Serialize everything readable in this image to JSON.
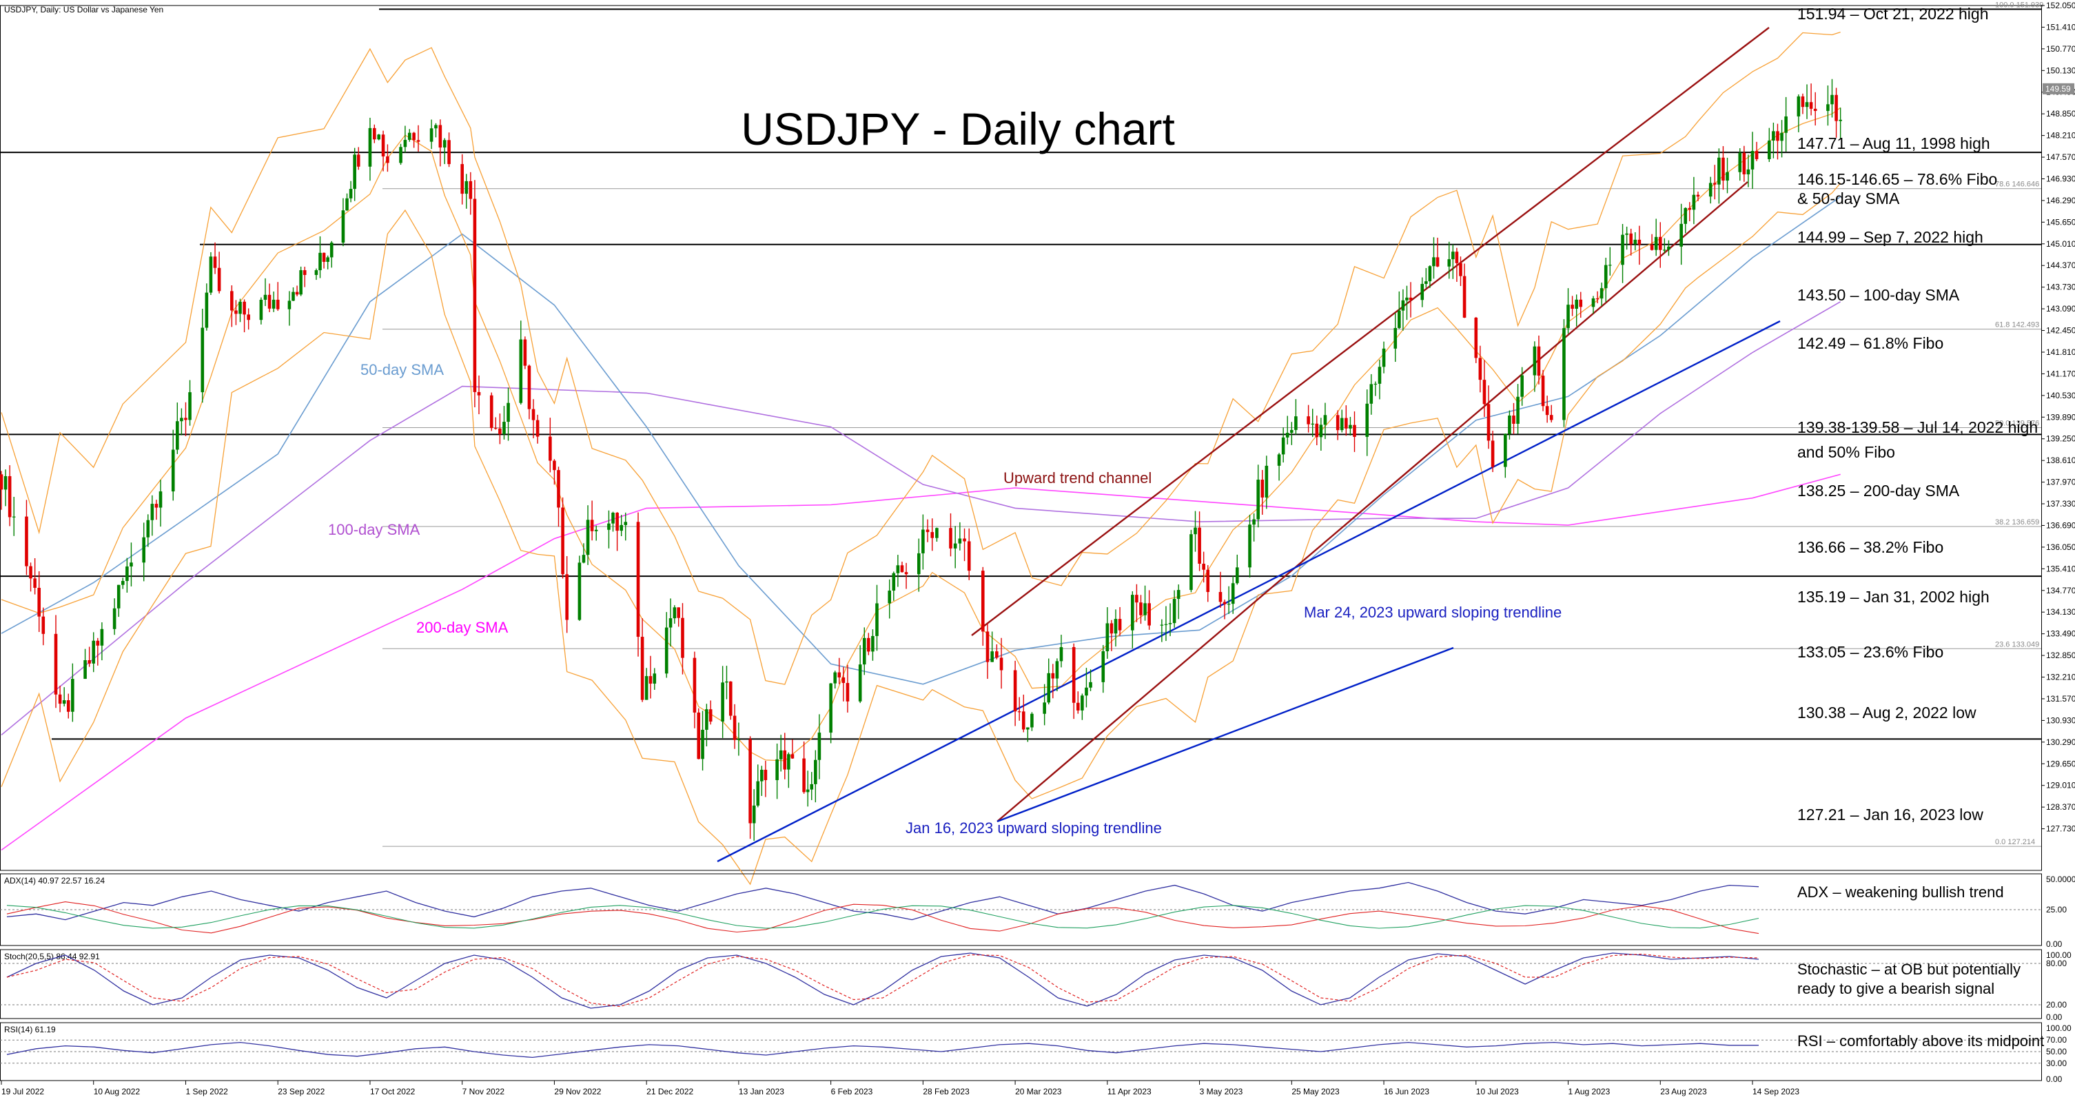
{
  "header": {
    "instrument": "USDJPY, Daily:  US Dollar vs Japanese Yen",
    "title": "USDJPY - Daily chart"
  },
  "colors": {
    "bull": "#008000",
    "bear": "#e00000",
    "bollinger": "#f7a035",
    "sma50": "#6a9cd0",
    "sma100": "#b070e0",
    "sma200": "#ff44ff",
    "channel": "#9a1010",
    "trendline": "#0020c8",
    "level": "#000000",
    "fibo": "#9a9a9a",
    "adx": "#3030a0",
    "plus_di": "#20a060",
    "minus_di": "#e02020",
    "stoch_main": "#3030a0",
    "stoch_signal": "#e02020",
    "rsi": "#3030a0"
  },
  "chart_data": {
    "type": "candlestick",
    "title": "USDJPY - Daily chart",
    "ylim": [
      126.5,
      152.05
    ],
    "x_ticks": [
      "19 Jul 2022",
      "10 Aug 2022",
      "1 Sep 2022",
      "23 Sep 2022",
      "17 Oct 2022",
      "7 Nov 2022",
      "29 Nov 2022",
      "21 Dec 2022",
      "13 Jan 2023",
      "6 Feb 2023",
      "28 Feb 2023",
      "20 Mar 2023",
      "11 Apr 2023",
      "3 May 2023",
      "25 May 2023",
      "16 Jun 2023",
      "10 Jul 2023",
      "1 Aug 2023",
      "23 Aug 2023",
      "14 Sep 2023"
    ],
    "y_ticks": [
      "152.050",
      "151.410",
      "150.770",
      "150.130",
      "149.490",
      "148.850",
      "148.210",
      "147.570",
      "146.930",
      "146.290",
      "145.650",
      "145.010",
      "144.370",
      "143.730",
      "143.090",
      "142.450",
      "141.810",
      "141.170",
      "140.530",
      "139.890",
      "139.250",
      "138.610",
      "137.970",
      "137.330",
      "136.690",
      "136.050",
      "135.410",
      "134.770",
      "134.130",
      "133.490",
      "132.850",
      "132.210",
      "131.570",
      "130.930",
      "130.290",
      "129.650",
      "129.010",
      "128.370",
      "127.730"
    ],
    "current_price_label": "149.59",
    "close_path": [
      [
        "19 Jul 2022",
        138.2
      ],
      [
        "28 Jul 2022",
        134.3
      ],
      [
        "2 Aug 2022",
        131.0
      ],
      [
        "10 Aug 2022",
        132.9
      ],
      [
        "17 Aug 2022",
        135.0
      ],
      [
        "1 Sep 2022",
        140.0
      ],
      [
        "7 Sep 2022",
        144.2
      ],
      [
        "12 Sep 2022",
        142.8
      ],
      [
        "23 Sep 2022",
        143.4
      ],
      [
        "5 Oct 2022",
        144.5
      ],
      [
        "17 Oct 2022",
        148.8
      ],
      [
        "21 Oct 2022",
        147.5
      ],
      [
        "25 Oct 2022",
        148.2
      ],
      [
        "31 Oct 2022",
        148.7
      ],
      [
        "3 Nov 2022",
        147.9
      ],
      [
        "9 Nov 2022",
        146.4
      ],
      [
        "10 Nov 2022",
        141.0
      ],
      [
        "16 Nov 2022",
        139.4
      ],
      [
        "21 Nov 2022",
        141.8
      ],
      [
        "25 Nov 2022",
        139.1
      ],
      [
        "29 Nov 2022",
        138.1
      ],
      [
        "2 Dec 2022",
        134.3
      ],
      [
        "8 Dec 2022",
        136.9
      ],
      [
        "16 Dec 2022",
        136.6
      ],
      [
        "20 Dec 2022",
        131.8
      ],
      [
        "28 Dec 2022",
        134.3
      ],
      [
        "3 Jan 2023",
        130.0
      ],
      [
        "9 Jan 2023",
        132.5
      ],
      [
        "16 Jan 2023",
        128.1
      ],
      [
        "20 Jan 2023",
        129.6
      ],
      [
        "25 Jan 2023",
        129.8
      ],
      [
        "1 Feb 2023",
        128.8
      ],
      [
        "6 Feb 2023",
        132.4
      ],
      [
        "10 Feb 2023",
        131.4
      ],
      [
        "17 Feb 2023",
        134.2
      ],
      [
        "28 Feb 2023",
        136.2
      ],
      [
        "2 Mar 2023",
        136.7
      ],
      [
        "9 Mar 2023",
        136.0
      ],
      [
        "13 Mar 2023",
        133.4
      ],
      [
        "20 Mar 2023",
        131.2
      ],
      [
        "24 Mar 2023",
        130.7
      ],
      [
        "31 Mar 2023",
        132.8
      ],
      [
        "5 Apr 2023",
        131.3
      ],
      [
        "11 Apr 2023",
        133.7
      ],
      [
        "18 Apr 2023",
        134.3
      ],
      [
        "25 Apr 2023",
        133.7
      ],
      [
        "2 May 2023",
        136.5
      ],
      [
        "5 May 2023",
        134.3
      ],
      [
        "11 May 2023",
        134.7
      ],
      [
        "17 May 2023",
        137.6
      ],
      [
        "25 May 2023",
        139.7
      ],
      [
        "30 May 2023",
        139.7
      ],
      [
        "5 Jun 2023",
        139.6
      ],
      [
        "9 Jun 2023",
        139.4
      ],
      [
        "16 Jun 2023",
        141.8
      ],
      [
        "23 Jun 2023",
        143.7
      ],
      [
        "30 Jun 2023",
        144.3
      ],
      [
        "5 Jul 2023",
        144.6
      ],
      [
        "10 Jul 2023",
        141.2
      ],
      [
        "14 Jul 2023",
        138.7
      ],
      [
        "20 Jul 2023",
        140.4
      ],
      [
        "24 Jul 2023",
        141.6
      ],
      [
        "28 Jul 2023",
        139.7
      ],
      [
        "1 Aug 2023",
        143.3
      ],
      [
        "8 Aug 2023",
        143.4
      ],
      [
        "14 Aug 2023",
        145.5
      ],
      [
        "23 Aug 2023",
        144.8
      ],
      [
        "29 Aug 2023",
        145.9
      ],
      [
        "1 Sep 2023",
        146.2
      ],
      [
        "7 Sep 2023",
        147.3
      ],
      [
        "14 Sep 2023",
        147.4
      ],
      [
        "20 Sep 2023",
        148.3
      ],
      [
        "26 Sep 2023",
        149.1
      ],
      [
        "3 Oct 2023",
        149.0
      ],
      [
        "5 Oct 2023",
        149.0
      ]
    ],
    "horizontal_levels": [
      {
        "value": 151.94,
        "label": "151.94 – Oct 21, 2022 high"
      },
      {
        "value": 147.71,
        "label": "147.71 – Aug 11, 1998 high"
      },
      {
        "value": 144.99,
        "label": "144.99 – Sep 7, 2022 high"
      },
      {
        "value": 139.38,
        "label": "139.38-139.58 – Jul 14, 2022 high"
      },
      {
        "value": 135.19,
        "label": "135.19 – Jan 31, 2002 high"
      },
      {
        "value": 130.38,
        "label": "130.38 – Aug 2, 2022 low"
      }
    ],
    "fibo_levels": [
      {
        "value": 151.94,
        "label": "100.0 151.939"
      },
      {
        "value": 146.64,
        "label": "78.6 146.646"
      },
      {
        "value": 142.49,
        "label": "61.8 142.493"
      },
      {
        "value": 139.58,
        "label": "50.0 139.576"
      },
      {
        "value": 136.66,
        "label": "38.2 136.659"
      },
      {
        "value": 133.05,
        "label": "23.6 133.049"
      },
      {
        "value": 127.21,
        "label": "0.0 127.214"
      }
    ],
    "annotations": [
      "151.94 – Oct 21, 2022 high",
      "147.71 – Aug 11, 1998 high",
      "146.15-146.65 – 78.6% Fibo",
      "& 50-day SMA",
      "144.99 – Sep 7, 2022 high",
      "143.50 – 100-day SMA",
      "142.49 – 61.8% Fibo",
      "139.38-139.58 – Jul 14, 2022 high",
      "and 50% Fibo",
      "138.25 – 200-day SMA",
      "136.66 – 38.2% Fibo",
      "135.19 – Jan 31, 2002 high",
      "133.05 – 23.6% Fibo",
      "130.38 – Aug 2, 2022 low",
      "127.21 – Jan 16, 2023 low"
    ],
    "series_labels": {
      "sma50": "50-day SMA",
      "sma100": "100-day SMA",
      "sma200": "200-day SMA",
      "channel": "Upward trend channel",
      "trend_mar": "Mar 24, 2023 upward sloping trendline",
      "trend_jan": "Jan 16, 2023 upward sloping trendline"
    },
    "sma200_path": [
      [
        "19 Jul 2022",
        127.1
      ],
      [
        "1 Sep 2022",
        131.0
      ],
      [
        "7 Nov 2022",
        134.8
      ],
      [
        "29 Nov 2022",
        136.3
      ],
      [
        "21 Dec 2022",
        137.2
      ],
      [
        "6 Feb 2023",
        137.3
      ],
      [
        "20 Mar 2023",
        137.8
      ],
      [
        "3 May 2023",
        137.4
      ],
      [
        "16 Jun 2023",
        137.0
      ],
      [
        "10 Jul 2023",
        136.8
      ],
      [
        "1 Aug 2023",
        136.7
      ],
      [
        "14 Sep 2023",
        137.5
      ],
      [
        "5 Oct 2023",
        138.2
      ]
    ],
    "sma100_path": [
      [
        "19 Jul 2022",
        130.5
      ],
      [
        "1 Sep 2022",
        135.0
      ],
      [
        "17 Oct 2022",
        139.2
      ],
      [
        "7 Nov 2022",
        140.8
      ],
      [
        "21 Dec 2022",
        140.6
      ],
      [
        "6 Feb 2023",
        139.6
      ],
      [
        "28 Feb 2023",
        137.9
      ],
      [
        "20 Mar 2023",
        137.2
      ],
      [
        "3 May 2023",
        136.8
      ],
      [
        "16 Jun 2023",
        136.9
      ],
      [
        "10 Jul 2023",
        136.9
      ],
      [
        "1 Aug 2023",
        137.8
      ],
      [
        "23 Aug 2023",
        140.0
      ],
      [
        "14 Sep 2023",
        141.8
      ],
      [
        "5 Oct 2023",
        143.3
      ]
    ],
    "sma50_path": [
      [
        "19 Jul 2022",
        133.5
      ],
      [
        "10 Aug 2022",
        135.0
      ],
      [
        "23 Sep 2022",
        138.8
      ],
      [
        "17 Oct 2022",
        143.3
      ],
      [
        "7 Nov 2022",
        145.3
      ],
      [
        "29 Nov 2022",
        143.2
      ],
      [
        "21 Dec 2022",
        139.6
      ],
      [
        "13 Jan 2023",
        135.5
      ],
      [
        "6 Feb 2023",
        132.6
      ],
      [
        "28 Feb 2023",
        132.0
      ],
      [
        "20 Mar 2023",
        133.0
      ],
      [
        "11 Apr 2023",
        133.4
      ],
      [
        "3 May 2023",
        133.6
      ],
      [
        "25 May 2023",
        135.2
      ],
      [
        "16 Jun 2023",
        137.6
      ],
      [
        "10 Jul 2023",
        139.8
      ],
      [
        "1 Aug 2023",
        140.5
      ],
      [
        "23 Aug 2023",
        142.3
      ],
      [
        "14 Sep 2023",
        144.6
      ],
      [
        "5 Oct 2023",
        146.4
      ]
    ],
    "indicators": [
      {
        "name": "ADX(14) 40.97 22.57 16.24",
        "label": "ADX – weakening bullish trend",
        "ticks": [
          "50.0000",
          "25.00",
          "0.00"
        ],
        "level": 25
      },
      {
        "name": "Stoch(20,5,5) 86.44 92.91",
        "label": "Stochastic – at OB but potentially ready to give a bearish signal",
        "ticks": [
          "100.00",
          "80.00",
          "20.00",
          "0.00"
        ],
        "levels": [
          20,
          80
        ]
      },
      {
        "name": "RSI(14) 61.19",
        "label": "RSI – comfortably above its midpoint",
        "ticks": [
          "100.00",
          "70.00",
          "50.00",
          "30.00",
          "0.00"
        ],
        "levels": [
          30,
          50,
          70
        ]
      }
    ],
    "adx_path": [
      20,
      22,
      18,
      24,
      30,
      28,
      34,
      38,
      32,
      28,
      24,
      30,
      34,
      38,
      30,
      24,
      20,
      26,
      34,
      38,
      40,
      34,
      28,
      24,
      30,
      36,
      40,
      36,
      30,
      24,
      22,
      18,
      24,
      30,
      34,
      28,
      22,
      26,
      32,
      38,
      42,
      36,
      28,
      24,
      30,
      34,
      38,
      40,
      44,
      38,
      30,
      24,
      22,
      26,
      32,
      30,
      28,
      32,
      38,
      42,
      41
    ],
    "stoch_path": [
      60,
      80,
      92,
      70,
      40,
      20,
      30,
      60,
      85,
      92,
      88,
      70,
      45,
      30,
      55,
      80,
      92,
      85,
      60,
      30,
      15,
      20,
      40,
      70,
      88,
      92,
      80,
      60,
      35,
      20,
      40,
      70,
      90,
      95,
      88,
      60,
      30,
      18,
      35,
      65,
      85,
      92,
      88,
      70,
      40,
      20,
      30,
      60,
      85,
      94,
      90,
      70,
      50,
      70,
      88,
      95,
      92,
      86,
      88,
      90,
      86
    ],
    "rsi_path": [
      45,
      55,
      60,
      58,
      52,
      48,
      55,
      62,
      66,
      60,
      52,
      45,
      42,
      48,
      55,
      58,
      50,
      44,
      40,
      46,
      52,
      58,
      62,
      60,
      54,
      48,
      44,
      50,
      56,
      60,
      58,
      54,
      50,
      56,
      62,
      64,
      60,
      52,
      48,
      54,
      60,
      64,
      62,
      58,
      54,
      50,
      56,
      62,
      66,
      62,
      58,
      60,
      64,
      66,
      62,
      64,
      60,
      62,
      64,
      61,
      61
    ]
  }
}
